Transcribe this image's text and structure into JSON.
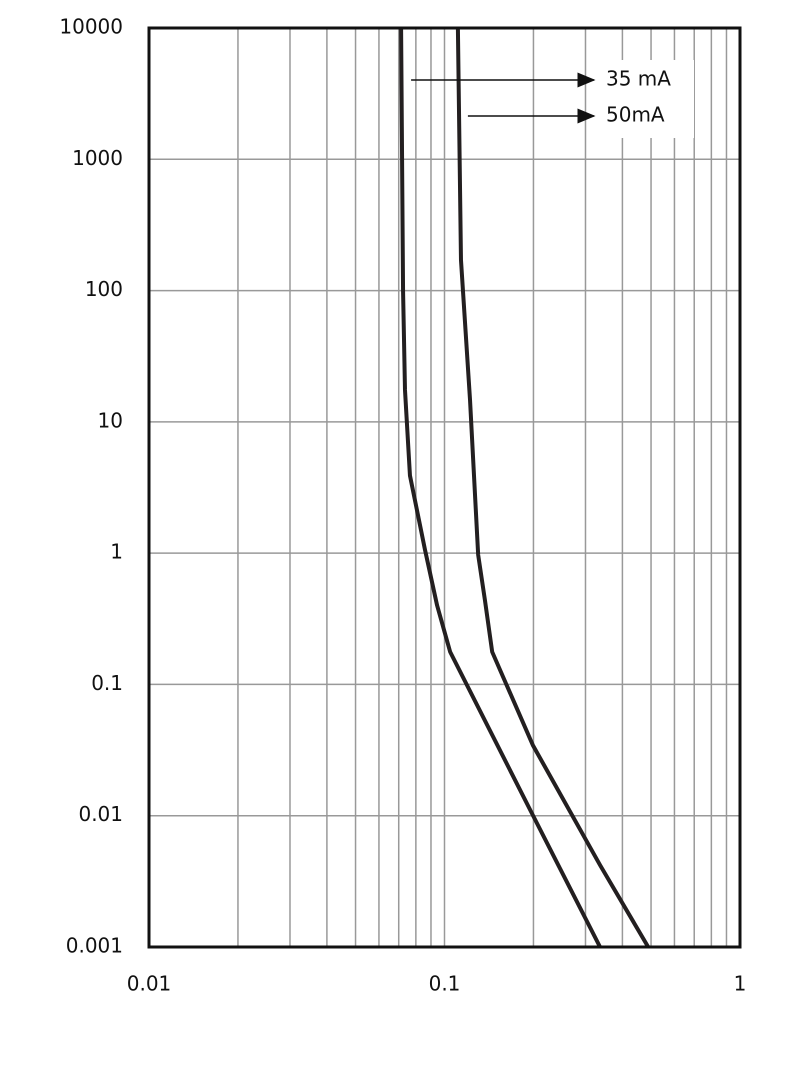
{
  "chart_data": {
    "type": "line",
    "xscale": "log",
    "yscale": "log",
    "grid": true,
    "xlim": [
      0.01,
      1
    ],
    "xticks": [
      0.01,
      0.1,
      1
    ],
    "xminorticks": [
      0.02,
      0.03,
      0.04,
      0.05,
      0.06,
      0.07,
      0.08,
      0.09,
      0.2,
      0.3,
      0.4,
      0.5,
      0.6,
      0.7,
      0.8,
      0.9
    ],
    "ylim": [
      0.001,
      10000
    ],
    "yticks": [
      0.001,
      0.01,
      0.1,
      1,
      10,
      100,
      1000,
      10000
    ],
    "series": [
      {
        "name": "35 mA",
        "color": "#231f20",
        "x": [
          0.0713,
          0.0724,
          0.0735,
          0.0764,
          0.0859,
          0.0944,
          0.1045,
          0.199,
          0.336
        ],
        "values": [
          10000,
          100,
          17.5,
          3.9,
          1.06,
          0.4,
          0.177,
          0.0101,
          0.001
        ]
      },
      {
        "name": "50mA",
        "color": "#231f20",
        "x": [
          0.111,
          0.1137,
          0.122,
          0.13,
          0.137,
          0.145,
          0.199,
          0.336,
          0.489
        ],
        "values": [
          10000,
          171,
          14.7,
          0.97,
          0.44,
          0.177,
          0.0345,
          0.00421,
          0.001
        ]
      }
    ]
  }
}
